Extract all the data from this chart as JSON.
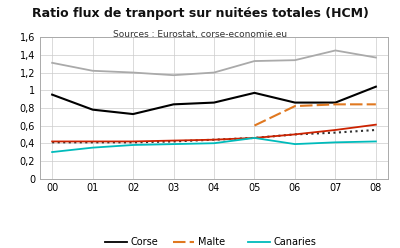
{
  "title": "Ratio flux de tranport sur nuitées totales (HCM)",
  "subtitle": "Sources : Eurostat, corse-economie.eu",
  "x_labels": [
    "00",
    "01",
    "02",
    "03",
    "04",
    "05",
    "06",
    "07",
    "08"
  ],
  "ylim": [
    0,
    1.6
  ],
  "yticks": [
    0,
    0.2,
    0.4,
    0.6,
    0.8,
    1.0,
    1.2,
    1.4,
    1.6
  ],
  "ytick_labels": [
    "0",
    "0,2",
    "0,4",
    "0,6",
    "0,8",
    "1",
    "1,2",
    "1,4",
    "1,6"
  ],
  "corse": [
    0.95,
    0.78,
    0.73,
    0.84,
    0.86,
    0.97,
    0.86,
    0.86,
    1.04
  ],
  "chypre": [
    0.41,
    0.41,
    0.41,
    0.42,
    0.44,
    0.46,
    0.5,
    0.52,
    0.55
  ],
  "malte": [
    null,
    null,
    null,
    null,
    null,
    0.6,
    0.82,
    0.84,
    0.84
  ],
  "baleares": [
    0.42,
    0.42,
    0.42,
    0.43,
    0.44,
    0.46,
    0.5,
    0.55,
    0.61
  ],
  "canaries": [
    0.3,
    0.35,
    0.38,
    0.39,
    0.4,
    0.46,
    0.39,
    0.41,
    0.42
  ],
  "sardaigne": [
    1.31,
    1.22,
    1.2,
    1.17,
    1.2,
    1.33,
    1.34,
    1.45,
    1.37
  ],
  "color_corse": "#000000",
  "color_chypre": "#333333",
  "color_malte": "#e07820",
  "color_baleares": "#cc2200",
  "color_canaries": "#00bbbb",
  "color_sardaigne": "#aaaaaa",
  "background_color": "#ffffff",
  "grid_color": "#cccccc"
}
